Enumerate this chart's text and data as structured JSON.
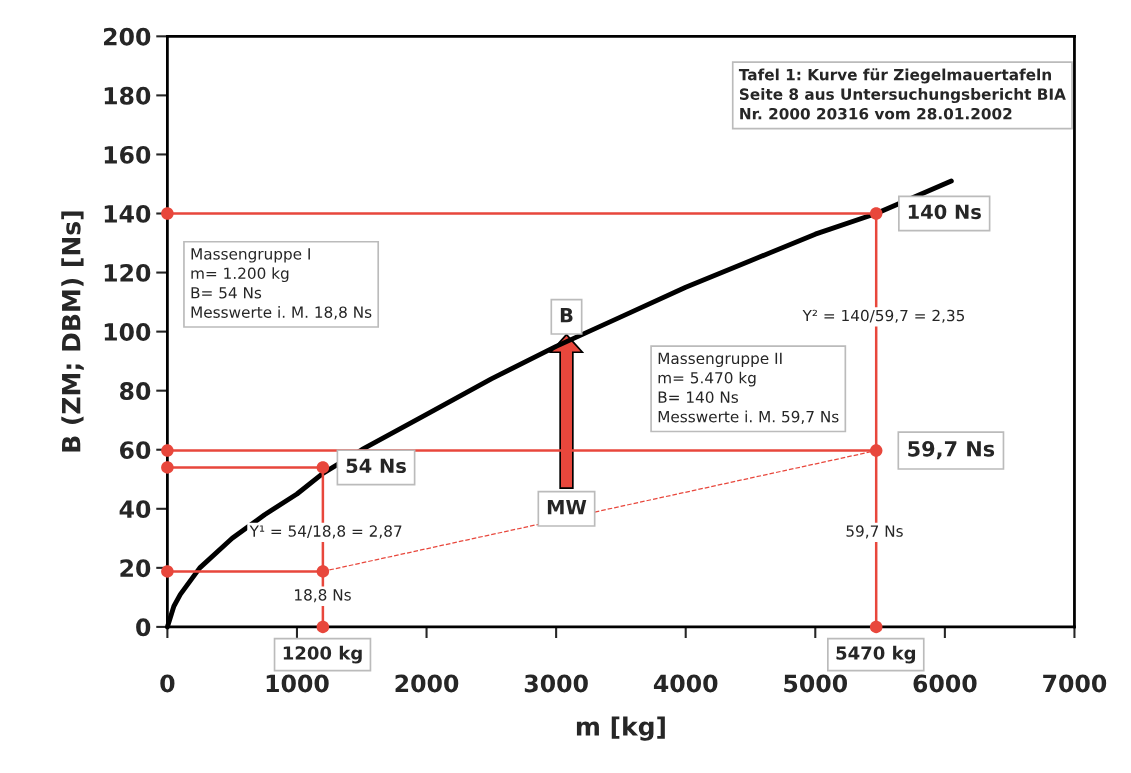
{
  "chart_data": {
    "type": "line",
    "xlabel": "m [kg]",
    "ylabel": "B (ZM; DBM) [Ns]",
    "xlim": [
      0,
      7000
    ],
    "xticks": [
      0,
      1000,
      2000,
      3000,
      4000,
      5000,
      6000,
      7000
    ],
    "ylim": [
      0,
      200
    ],
    "yticks": [
      0,
      20,
      40,
      60,
      80,
      100,
      120,
      140,
      160,
      180,
      200
    ],
    "grid": false,
    "series": [
      {
        "color": "#000000",
        "x": [
          0,
          50,
          100,
          250,
          500,
          750,
          1000,
          1200,
          1500,
          2000,
          2500,
          3000,
          3500,
          4000,
          4500,
          5000,
          5470,
          6050
        ],
        "values": [
          0,
          7,
          11,
          20,
          30,
          38,
          45,
          52,
          60,
          72,
          84,
          95,
          105,
          115,
          124,
          133,
          140,
          151
        ]
      },
      {
        "color": "#e8473c",
        "marker": "circle",
        "x": [
          0,
          5470,
          5470
        ],
        "values": [
          140,
          140,
          0
        ]
      },
      {
        "color": "#e8473c",
        "marker": "circle",
        "x": [
          0,
          5470
        ],
        "values": [
          59.7,
          59.7
        ]
      },
      {
        "color": "#e8473c",
        "marker": "circle",
        "x": [
          0,
          1200,
          1200
        ],
        "values": [
          54,
          54,
          0
        ]
      },
      {
        "color": "#e8473c",
        "marker": "circle",
        "x": [
          0,
          1200
        ],
        "values": [
          18.8,
          18.8
        ]
      },
      {
        "color": "#e8473c",
        "line_style": "dashed",
        "x": [
          1200,
          5470
        ],
        "values": [
          18.8,
          59.7
        ]
      }
    ],
    "annotations": [
      "Tafel 1: Kurve für Ziegelmauertafeln\nSeite 8 aus Untersuchungsbericht BIA\nNr. 2000 20316 vom 28.01.2002",
      "Massengruppe I\nm= 1.200 kg\nB= 54 Ns\nMesswerte i. M. 18,8 Ns",
      "Massengruppe II\nm= 5.470 kg\nB= 140 Ns\nMesswerte i. M. 59,7 Ns",
      "140 Ns",
      "59,7 Ns",
      "54 Ns",
      "18,8 Ns",
      "59,7 Ns",
      "1200 kg",
      "5470 kg",
      "Y¹ = 54/18,8 = 2,87",
      "Y² = 140/59,7 = 2,35",
      "B",
      "MW"
    ]
  }
}
